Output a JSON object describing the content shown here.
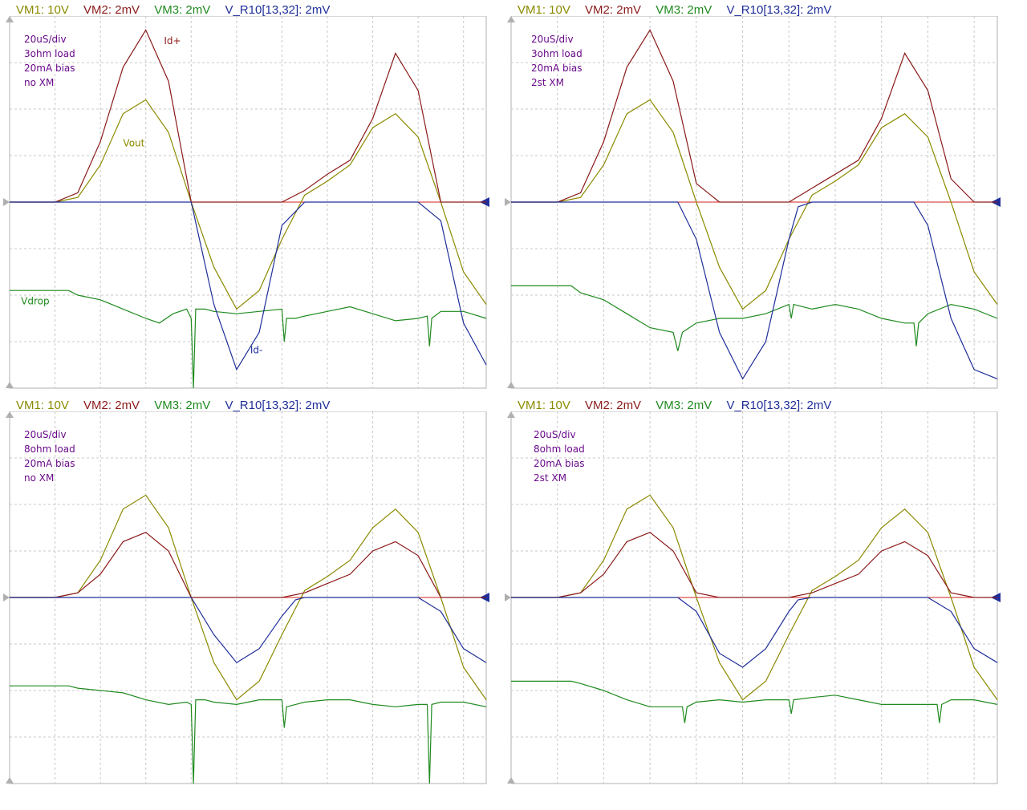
{
  "channels": [
    {
      "id": "VM1",
      "label": "VM1: 10V",
      "color": "#8a8a00"
    },
    {
      "id": "VM2",
      "label": "VM2: 2mV",
      "color": "#8b1a1a"
    },
    {
      "id": "VM3",
      "label": "VM3: 2mV",
      "color": "#1f8a1f"
    },
    {
      "id": "VR10",
      "label": "V_R10[13,32]: 2mV",
      "color": "#1f2f9a"
    }
  ],
  "note_color": "#6a0a8a",
  "panels": [
    {
      "notes": [
        "20uS/div",
        "3ohm load",
        "20mA bias",
        "no XM"
      ],
      "labels": {
        "id_plus": "Id+",
        "vout": "Vout",
        "vdrop": "Vdrop",
        "id_minus": "Id-"
      }
    },
    {
      "notes": [
        "20uS/div",
        "3ohm load",
        "20mA bias",
        "2st XM"
      ],
      "labels": {}
    },
    {
      "notes": [
        "20uS/div",
        "8ohm load",
        "20mA bias",
        "no XM"
      ],
      "labels": {}
    },
    {
      "notes": [
        "20uS/div",
        "8ohm load",
        "20mA bias",
        "2st XM"
      ],
      "labels": {}
    }
  ],
  "chart_data": [
    {
      "type": "line",
      "x_unit": "div (20uS/div)",
      "xlim": [
        0,
        10.5
      ],
      "ylim": [
        -4,
        4
      ],
      "grid": true,
      "series": [
        {
          "name": "VM1",
          "x": [
            0,
            1,
            1.5,
            2,
            2.5,
            3,
            3.5,
            4,
            4.5,
            5,
            5.5,
            6,
            6.5,
            7,
            7.5,
            8,
            8.5,
            9,
            9.5,
            10,
            10.5
          ],
          "y": [
            0,
            0,
            0.1,
            0.8,
            1.9,
            2.2,
            1.5,
            0,
            -1.4,
            -2.3,
            -1.9,
            -0.8,
            0.15,
            0.45,
            0.8,
            1.6,
            1.9,
            1.4,
            0,
            -1.5,
            -2.2
          ]
        },
        {
          "name": "VM2",
          "x": [
            0,
            1,
            1.5,
            2,
            2.5,
            3,
            3.5,
            4,
            4.5,
            5,
            5.5,
            6,
            6.5,
            7,
            7.5,
            8,
            8.5,
            9,
            9.5,
            10,
            10.5
          ],
          "y": [
            0,
            0,
            0.2,
            1.3,
            2.9,
            3.7,
            2.6,
            0,
            0,
            0,
            0,
            0,
            0.25,
            0.6,
            0.9,
            1.8,
            3.2,
            2.4,
            0,
            0,
            0
          ]
        },
        {
          "name": "VM3",
          "x": [
            0,
            1,
            1.3,
            1.5,
            2,
            2.5,
            3,
            3.3,
            3.6,
            3.9,
            4.0,
            4.05,
            4.1,
            4.3,
            4.5,
            5,
            5.5,
            6,
            6.05,
            6.1,
            6.3,
            6.5,
            7,
            7.5,
            8,
            8.5,
            9,
            9.2,
            9.25,
            9.3,
            9.5,
            10,
            10.5
          ],
          "y": [
            -1.9,
            -1.9,
            -1.9,
            -2.0,
            -2.1,
            -2.3,
            -2.5,
            -2.6,
            -2.4,
            -2.3,
            -2.5,
            -4,
            -2.3,
            -2.3,
            -2.35,
            -2.4,
            -2.35,
            -2.3,
            -3.0,
            -2.5,
            -2.5,
            -2.45,
            -2.35,
            -2.25,
            -2.4,
            -2.55,
            -2.5,
            -2.45,
            -3.1,
            -2.5,
            -2.35,
            -2.35,
            -2.5
          ]
        },
        {
          "name": "V_R10[13,32]",
          "x": [
            0,
            3,
            4,
            4.5,
            5,
            5.5,
            6,
            6.5,
            7,
            8,
            9,
            9.5,
            10,
            10.5
          ],
          "y": [
            0,
            0,
            0,
            -2.2,
            -3.6,
            -2.8,
            -0.5,
            0,
            0,
            0,
            0,
            -0.4,
            -2.6,
            -3.5
          ]
        }
      ]
    },
    {
      "type": "line",
      "x_unit": "div (20uS/div)",
      "xlim": [
        0,
        10.5
      ],
      "ylim": [
        -4,
        4
      ],
      "grid": true,
      "series": [
        {
          "name": "VM1",
          "x": [
            0,
            1,
            1.5,
            2,
            2.5,
            3,
            3.5,
            4,
            4.5,
            5,
            5.5,
            6,
            6.5,
            7,
            7.5,
            8,
            8.5,
            9,
            9.5,
            10,
            10.5
          ],
          "y": [
            0,
            0,
            0.1,
            0.8,
            1.9,
            2.2,
            1.5,
            0,
            -1.4,
            -2.3,
            -1.9,
            -0.8,
            0.15,
            0.45,
            0.8,
            1.6,
            1.9,
            1.4,
            0,
            -1.5,
            -2.2
          ]
        },
        {
          "name": "VM2",
          "x": [
            0,
            1,
            1.5,
            2,
            2.5,
            3,
            3.5,
            4,
            4.5,
            5,
            5.5,
            6,
            6.5,
            7,
            7.5,
            8,
            8.5,
            9,
            9.5,
            10,
            10.5
          ],
          "y": [
            0,
            0,
            0.2,
            1.3,
            2.9,
            3.7,
            2.6,
            0.4,
            0,
            0,
            0,
            0,
            0.3,
            0.6,
            0.9,
            1.8,
            3.2,
            2.4,
            0.5,
            0,
            0
          ]
        },
        {
          "name": "VM3",
          "x": [
            0,
            1,
            1.3,
            1.5,
            2,
            2.5,
            3,
            3.5,
            3.6,
            3.7,
            4,
            4.5,
            5,
            5.5,
            6,
            6.05,
            6.1,
            6.5,
            7,
            7.5,
            8,
            8.5,
            8.7,
            8.75,
            8.8,
            9,
            9.5,
            10,
            10.5
          ],
          "y": [
            -1.8,
            -1.8,
            -1.8,
            -1.95,
            -2.1,
            -2.4,
            -2.7,
            -2.8,
            -3.2,
            -2.8,
            -2.6,
            -2.5,
            -2.5,
            -2.4,
            -2.2,
            -2.5,
            -2.2,
            -2.3,
            -2.2,
            -2.3,
            -2.5,
            -2.6,
            -2.6,
            -3.1,
            -2.6,
            -2.4,
            -2.2,
            -2.3,
            -2.5
          ]
        },
        {
          "name": "V_R10[13,32]",
          "x": [
            0,
            3,
            3.6,
            4,
            4.5,
            5,
            5.5,
            6,
            6.2,
            6.5,
            7,
            8,
            8.7,
            9,
            9.5,
            10,
            10.5
          ],
          "y": [
            0,
            0,
            0,
            -0.8,
            -2.8,
            -3.8,
            -3.0,
            -0.8,
            -0.1,
            0,
            0,
            0,
            0,
            -0.5,
            -2.5,
            -3.6,
            -3.8
          ]
        }
      ]
    },
    {
      "type": "line",
      "x_unit": "div (20uS/div)",
      "xlim": [
        0,
        10.5
      ],
      "ylim": [
        -4,
        4
      ],
      "grid": true,
      "series": [
        {
          "name": "VM1",
          "x": [
            0,
            1,
            1.5,
            2,
            2.5,
            3,
            3.5,
            4,
            4.5,
            5,
            5.5,
            6,
            6.5,
            7,
            7.5,
            8,
            8.5,
            9,
            9.5,
            10,
            10.5
          ],
          "y": [
            0,
            0,
            0.1,
            0.8,
            1.9,
            2.2,
            1.5,
            0,
            -1.4,
            -2.2,
            -1.8,
            -0.8,
            0.15,
            0.45,
            0.8,
            1.5,
            1.9,
            1.4,
            0,
            -1.5,
            -2.2
          ]
        },
        {
          "name": "VM2",
          "x": [
            0,
            1,
            1.5,
            2,
            2.5,
            3,
            3.5,
            4,
            4.5,
            5,
            5.5,
            6,
            6.5,
            7,
            7.5,
            8,
            8.5,
            9,
            9.5,
            10,
            10.5
          ],
          "y": [
            0,
            0,
            0.1,
            0.5,
            1.2,
            1.4,
            1.0,
            0,
            0,
            0,
            0,
            0,
            0.1,
            0.3,
            0.5,
            1.0,
            1.2,
            0.9,
            0,
            0,
            0
          ]
        },
        {
          "name": "VM3",
          "x": [
            0,
            1,
            1.3,
            1.5,
            2,
            2.5,
            3,
            3.5,
            3.9,
            4.0,
            4.05,
            4.1,
            4.3,
            4.5,
            5,
            5.5,
            6,
            6.05,
            6.1,
            6.3,
            6.5,
            7,
            7.5,
            8,
            8.5,
            9,
            9.2,
            9.25,
            9.3,
            9.5,
            10,
            10.5
          ],
          "y": [
            -1.9,
            -1.9,
            -1.9,
            -1.95,
            -2.0,
            -2.05,
            -2.2,
            -2.3,
            -2.25,
            -2.3,
            -4,
            -2.2,
            -2.2,
            -2.25,
            -2.3,
            -2.2,
            -2.2,
            -2.8,
            -2.35,
            -2.3,
            -2.25,
            -2.2,
            -2.2,
            -2.3,
            -2.35,
            -2.3,
            -2.3,
            -4,
            -2.3,
            -2.25,
            -2.25,
            -2.35
          ]
        },
        {
          "name": "V_R10[13,32]",
          "x": [
            0,
            3,
            4,
            4.5,
            5,
            5.5,
            6,
            6.3,
            6.5,
            7,
            8,
            9,
            9.5,
            10,
            10.5
          ],
          "y": [
            0,
            0,
            0,
            -0.8,
            -1.4,
            -1.1,
            -0.4,
            -0.05,
            0,
            0,
            0,
            0,
            -0.3,
            -1.1,
            -1.4
          ]
        }
      ]
    },
    {
      "type": "line",
      "x_unit": "div (20uS/div)",
      "xlim": [
        0,
        10.5
      ],
      "ylim": [
        -4,
        4
      ],
      "grid": true,
      "series": [
        {
          "name": "VM1",
          "x": [
            0,
            1,
            1.5,
            2,
            2.5,
            3,
            3.5,
            4,
            4.5,
            5,
            5.5,
            6,
            6.5,
            7,
            7.5,
            8,
            8.5,
            9,
            9.5,
            10,
            10.5
          ],
          "y": [
            0,
            0,
            0.1,
            0.8,
            1.9,
            2.2,
            1.5,
            0,
            -1.4,
            -2.2,
            -1.8,
            -0.8,
            0.15,
            0.45,
            0.8,
            1.5,
            1.9,
            1.4,
            0,
            -1.5,
            -2.2
          ]
        },
        {
          "name": "VM2",
          "x": [
            0,
            1,
            1.5,
            2,
            2.5,
            3,
            3.5,
            4,
            4.5,
            5,
            5.5,
            6,
            6.5,
            7,
            7.5,
            8,
            8.5,
            9,
            9.5,
            10,
            10.5
          ],
          "y": [
            0,
            0,
            0.1,
            0.5,
            1.2,
            1.4,
            1.0,
            0.1,
            0,
            0,
            0,
            0,
            0.1,
            0.3,
            0.5,
            1.0,
            1.2,
            0.9,
            0.1,
            0,
            0
          ]
        },
        {
          "name": "VM3",
          "x": [
            0,
            1,
            1.3,
            1.5,
            2,
            2.5,
            3,
            3.5,
            3.7,
            3.75,
            3.8,
            4,
            4.5,
            5,
            5.5,
            6,
            6.05,
            6.1,
            6.5,
            7,
            7.5,
            8,
            8.5,
            9,
            9.2,
            9.25,
            9.3,
            9.5,
            10,
            10.5
          ],
          "y": [
            -1.8,
            -1.8,
            -1.8,
            -1.85,
            -2.0,
            -2.2,
            -2.35,
            -2.35,
            -2.35,
            -2.7,
            -2.35,
            -2.25,
            -2.2,
            -2.25,
            -2.2,
            -2.2,
            -2.5,
            -2.2,
            -2.15,
            -2.1,
            -2.2,
            -2.3,
            -2.3,
            -2.3,
            -2.3,
            -2.7,
            -2.3,
            -2.2,
            -2.2,
            -2.3
          ]
        },
        {
          "name": "V_R10[13,32]",
          "x": [
            0,
            3,
            3.6,
            4,
            4.5,
            5,
            5.5,
            6,
            6.2,
            6.5,
            7,
            8,
            9,
            9.5,
            10,
            10.5
          ],
          "y": [
            0,
            0,
            0,
            -0.3,
            -1.2,
            -1.5,
            -1.1,
            -0.3,
            -0.05,
            0,
            0,
            0,
            0,
            -0.3,
            -1.1,
            -1.4
          ]
        }
      ]
    }
  ]
}
